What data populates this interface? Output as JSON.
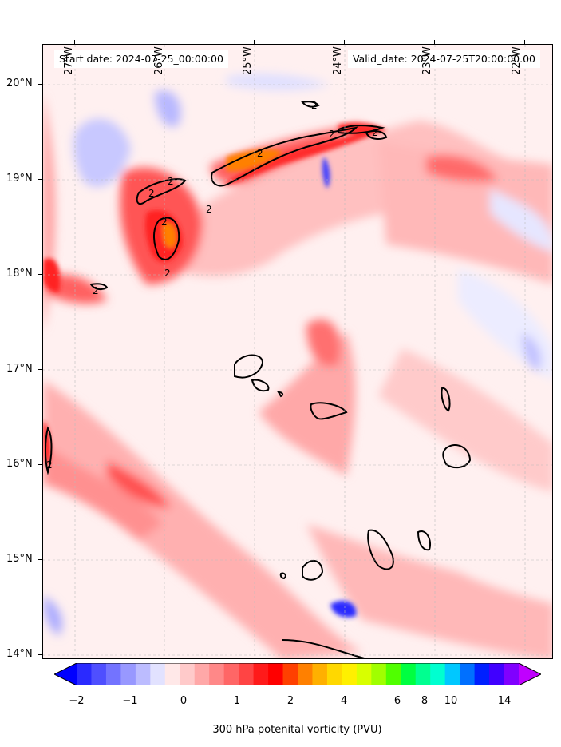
{
  "header": {
    "start_date": "Start date: 2024-07-25_00:00:00",
    "valid_date": "Valid_date: 2024-07-25T20:00:00.00"
  },
  "longitude_labels": [
    "27°W",
    "26°W",
    "25°W",
    "24°W",
    "23°W",
    "22°W"
  ],
  "latitude_labels": [
    "20°N",
    "19°N",
    "18°N",
    "17°N",
    "16°N",
    "15°N",
    "14°N"
  ],
  "contour_labels": [
    "2",
    "2",
    "2",
    "2",
    "2",
    "2",
    "2",
    "2",
    "2",
    "2",
    "2"
  ],
  "colorbar": {
    "title": "300 hPa potenital vorticity (PVU)",
    "tick_labels": [
      "−2",
      "−1",
      "0",
      "1",
      "2",
      "4",
      "6",
      "8",
      "10",
      "14"
    ],
    "colors": [
      "#0000ff",
      "#2a2aff",
      "#4f4fff",
      "#7373ff",
      "#9898ff",
      "#bcbcff",
      "#e2e2ff",
      "#ffe8e8",
      "#ffcaca",
      "#ffa8a8",
      "#ff8888",
      "#ff6666",
      "#ff4444",
      "#ff1a1a",
      "#ff0000",
      "#ff4000",
      "#ff8000",
      "#ffb000",
      "#ffd800",
      "#fff000",
      "#d8ff00",
      "#a0ff00",
      "#50ff00",
      "#00ff40",
      "#00ff90",
      "#00ffd0",
      "#00c8ff",
      "#0070ff",
      "#0020ff",
      "#4000ff",
      "#8000ff",
      "#c000ff"
    ]
  }
}
